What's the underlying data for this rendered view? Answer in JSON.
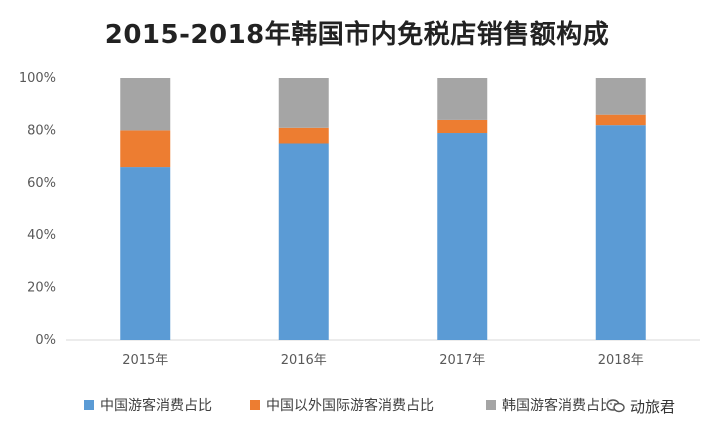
{
  "chart_data": {
    "type": "bar",
    "stacked": true,
    "title": "2015-2018年韩国市内免税店销售额构成",
    "categories": [
      "2015年",
      "2016年",
      "2017年",
      "2018年"
    ],
    "series": [
      {
        "name": "中国游客消费占比",
        "color": "#5B9BD5",
        "values": [
          66,
          75,
          79,
          82
        ]
      },
      {
        "name": "中国以外国际游客消费占比",
        "color": "#ED7D31",
        "values": [
          14,
          6,
          5,
          4
        ]
      },
      {
        "name": "韩国游客消费占比",
        "color": "#A5A5A5",
        "values": [
          20,
          19,
          16,
          14
        ]
      }
    ],
    "yticks": [
      "0%",
      "20%",
      "40%",
      "60%",
      "80%",
      "100%"
    ],
    "ylim": [
      0,
      100
    ],
    "grid": false,
    "legend": "bottom"
  },
  "watermark": {
    "text": "动旅君",
    "icon": "wechat-icon"
  }
}
